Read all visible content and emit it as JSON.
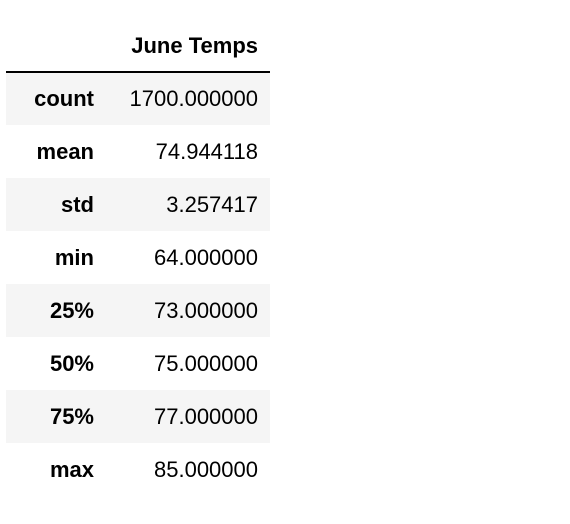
{
  "table": {
    "columns": [
      "June Temps"
    ],
    "rows": [
      {
        "index": "count",
        "value": "1700.000000"
      },
      {
        "index": "mean",
        "value": "74.944118"
      },
      {
        "index": "std",
        "value": "3.257417"
      },
      {
        "index": "min",
        "value": "64.000000"
      },
      {
        "index": "25%",
        "value": "73.000000"
      },
      {
        "index": "50%",
        "value": "75.000000"
      },
      {
        "index": "75%",
        "value": "77.000000"
      },
      {
        "index": "max",
        "value": "85.000000"
      }
    ]
  },
  "colors": {
    "stripe": "#f5f5f5",
    "background": "#ffffff",
    "text": "#000000",
    "header_rule": "#000000"
  }
}
